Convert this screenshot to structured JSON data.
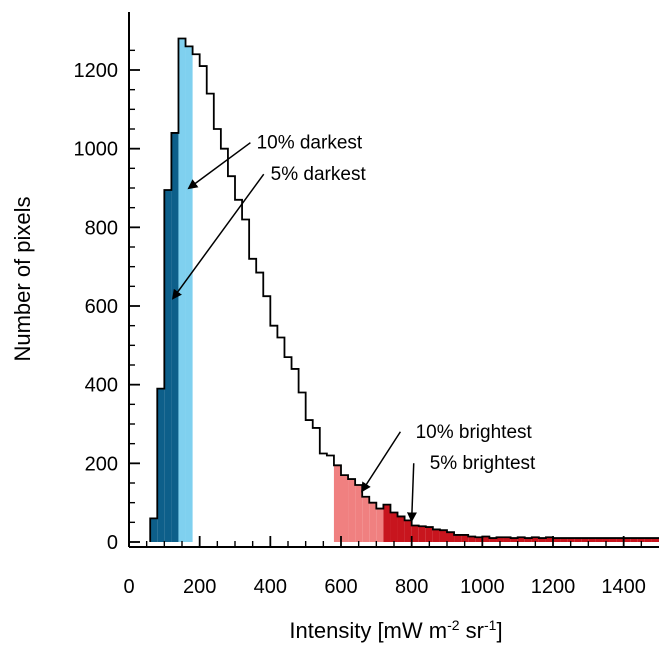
{
  "chart_data": {
    "type": "histogram",
    "xlabel": {
      "main": "Intensity [mW m",
      "sup1": "-2",
      "mid": " sr",
      "sup2": "-1",
      "end": "]"
    },
    "ylabel": "Number of pixels",
    "xlim": [
      0,
      1500
    ],
    "ylim": [
      0,
      1300
    ],
    "x_ticks": [
      0,
      200,
      400,
      600,
      800,
      1000,
      1200,
      1400
    ],
    "x_tick_labels": [
      "0",
      "200",
      "400",
      "600",
      "800",
      "1000",
      "1200",
      "1400"
    ],
    "y_ticks": [
      0,
      200,
      400,
      600,
      800,
      1000,
      1200
    ],
    "y_tick_labels": [
      "0",
      "200",
      "400",
      "600",
      "800",
      "1000",
      "1200"
    ],
    "bin_width": 20,
    "bin_start": 60,
    "counts": [
      60,
      390,
      895,
      1040,
      1280,
      1260,
      1240,
      1210,
      1140,
      1050,
      1000,
      930,
      870,
      820,
      720,
      685,
      625,
      550,
      520,
      470,
      440,
      380,
      310,
      290,
      225,
      220,
      195,
      170,
      160,
      145,
      115,
      100,
      85,
      95,
      75,
      65,
      55,
      42,
      40,
      38,
      32,
      30,
      25,
      18,
      18,
      14,
      12,
      14,
      10,
      12,
      12,
      10,
      12,
      10,
      12,
      10,
      12,
      10,
      10,
      10,
      10,
      10,
      10,
      10,
      10,
      10,
      10,
      10,
      10,
      10,
      10,
      10
    ],
    "regions": [
      {
        "name": "5% darkest",
        "from": 60,
        "to": 140,
        "color": "#0d5f8a"
      },
      {
        "name": "10% darkest",
        "from": 140,
        "to": 180,
        "color": "#7fd0ef"
      },
      {
        "name": "10% brightest",
        "from": 580,
        "to": 720,
        "color": "#f08080"
      },
      {
        "name": "5% brightest",
        "from": 720,
        "to": 1500,
        "color": "#c8151e"
      }
    ],
    "annotations": [
      {
        "label": "10% darkest",
        "text_x": 660,
        "text_y": 1000,
        "arrow_to": [
          170,
          900
        ]
      },
      {
        "label": "5% darkest",
        "text_x": 670,
        "text_y": 920,
        "arrow_to": [
          125,
          620
        ]
      },
      {
        "label": "10% brightest",
        "text_x": 1140,
        "text_y": 265,
        "arrow_to": [
          660,
          130
        ]
      },
      {
        "label": "5% brightest",
        "text_x": 1150,
        "text_y": 185,
        "arrow_to": [
          800,
          55
        ]
      }
    ]
  }
}
